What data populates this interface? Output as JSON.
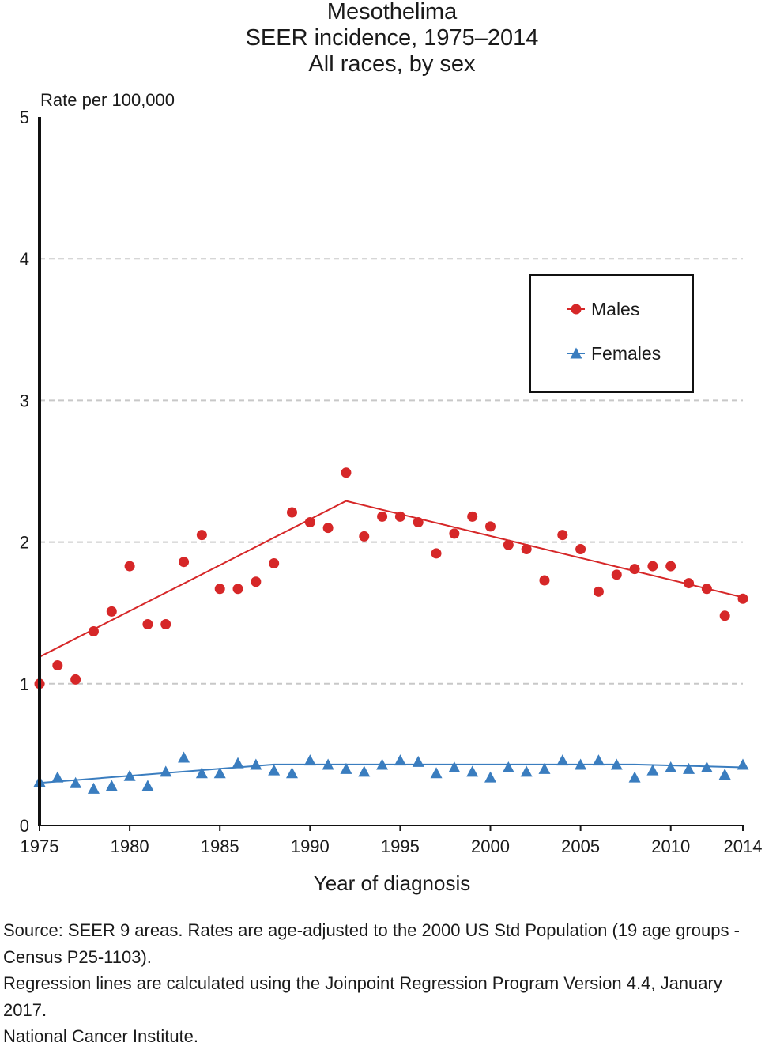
{
  "chart_data": {
    "type": "scatter",
    "title": [
      "Mesothelima",
      "SEER incidence, 1975–2014",
      "All races, by sex"
    ],
    "xlabel": "Year of diagnosis",
    "ylabel": "Rate per 100,000",
    "xlim": [
      1975,
      2014
    ],
    "ylim": [
      0,
      5
    ],
    "x_tick_labels": [
      "1975",
      "1980",
      "1985",
      "1990",
      "1995",
      "2000",
      "2005",
      "2010",
      "2014"
    ],
    "x_ticks": [
      1975,
      1980,
      1985,
      1990,
      1995,
      2000,
      2005,
      2010,
      2014
    ],
    "y_ticks": [
      0,
      1,
      2,
      3,
      4,
      5
    ],
    "y_tick_labels": [
      "0",
      "1",
      "2",
      "3",
      "4",
      "5"
    ],
    "grid": "horizontal dashed",
    "legend": {
      "position": "right",
      "entries": [
        "Males",
        "Females"
      ]
    },
    "x": [
      1975,
      1976,
      1977,
      1978,
      1979,
      1980,
      1981,
      1982,
      1983,
      1984,
      1985,
      1986,
      1987,
      1988,
      1989,
      1990,
      1991,
      1992,
      1993,
      1994,
      1995,
      1996,
      1997,
      1998,
      1999,
      2000,
      2001,
      2002,
      2003,
      2004,
      2005,
      2006,
      2007,
      2008,
      2009,
      2010,
      2011,
      2012,
      2013,
      2014
    ],
    "series": [
      {
        "name": "Males",
        "color": "#d62728",
        "marker": "circle",
        "values": [
          1.0,
          1.13,
          1.03,
          1.37,
          1.51,
          1.83,
          1.42,
          1.42,
          1.86,
          2.05,
          1.67,
          1.67,
          1.72,
          1.85,
          2.21,
          2.14,
          2.1,
          2.49,
          2.04,
          2.18,
          2.18,
          2.14,
          1.92,
          2.06,
          2.18,
          2.11,
          1.98,
          1.95,
          1.73,
          2.05,
          1.95,
          1.65,
          1.77,
          1.81,
          1.83,
          1.83,
          1.71,
          1.67,
          1.48,
          1.6
        ],
        "trend": {
          "x": [
            1975,
            1992,
            2014
          ],
          "y": [
            1.19,
            2.29,
            1.61
          ]
        }
      },
      {
        "name": "Females",
        "color": "#3a7dbf",
        "marker": "triangle",
        "values": [
          0.31,
          0.34,
          0.3,
          0.26,
          0.28,
          0.35,
          0.28,
          0.38,
          0.48,
          0.37,
          0.37,
          0.44,
          0.43,
          0.39,
          0.37,
          0.46,
          0.43,
          0.4,
          0.38,
          0.43,
          0.46,
          0.45,
          0.37,
          0.41,
          0.38,
          0.34,
          0.41,
          0.38,
          0.4,
          0.46,
          0.43,
          0.46,
          0.43,
          0.34,
          0.39,
          0.41,
          0.4,
          0.41,
          0.36,
          0.43
        ],
        "trend": {
          "x": [
            1975,
            1988,
            2008,
            2014
          ],
          "y": [
            0.3,
            0.43,
            0.43,
            0.41
          ]
        }
      }
    ]
  },
  "footnotes": [
    "Source: SEER 9 areas. Rates are age-adjusted to the 2000 US Std Population (19 age groups - Census P25-1103).",
    "Regression lines are calculated using the Joinpoint Regression Program Version 4.4, January 2017.",
    "National Cancer Institute."
  ]
}
